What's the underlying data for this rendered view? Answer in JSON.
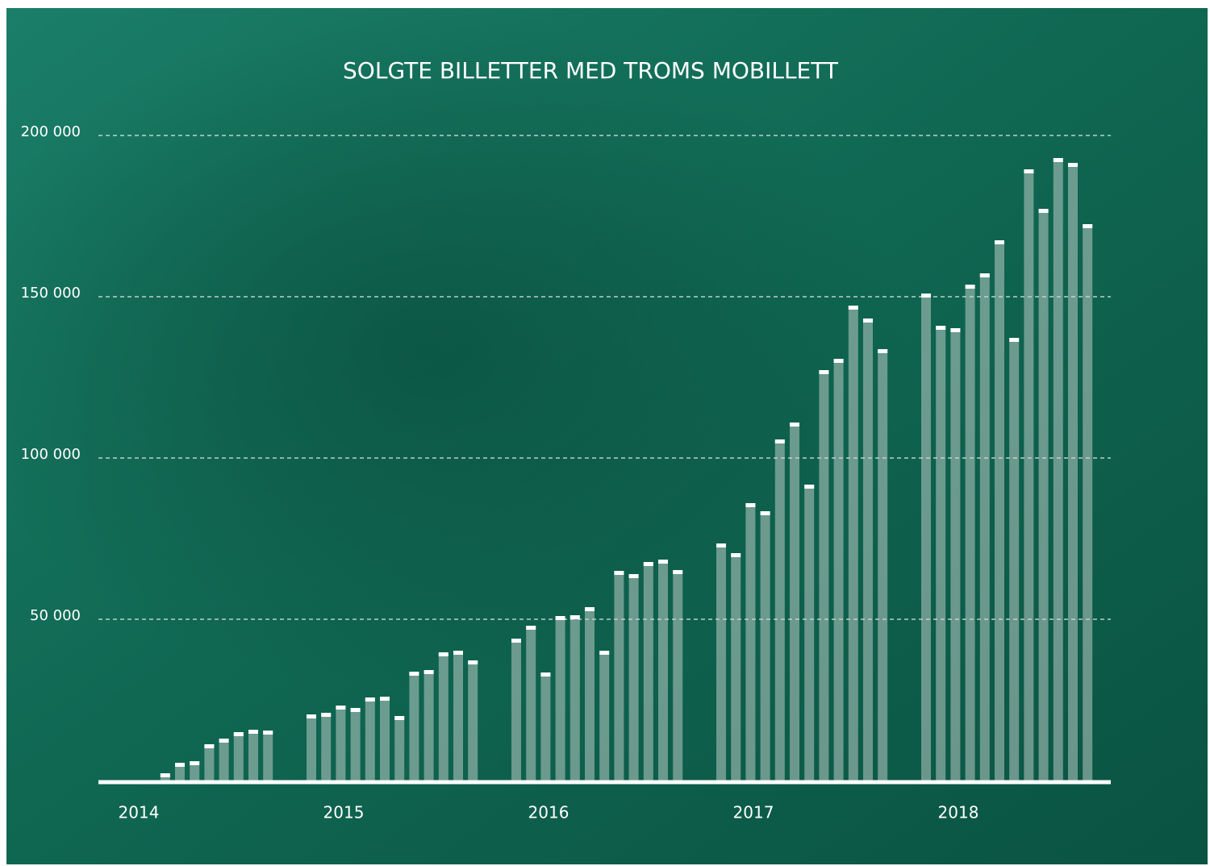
{
  "chart_data": {
    "type": "bar",
    "title": "SOLGTE BILLETTER MED TROMS MOBILLETT",
    "categories": [
      "2014",
      null,
      null,
      null,
      null,
      null,
      null,
      null,
      null,
      null,
      null,
      null,
      "2015",
      null,
      null,
      null,
      null,
      null,
      null,
      null,
      null,
      null,
      null,
      null,
      "2016",
      null,
      null,
      null,
      null,
      null,
      null,
      null,
      null,
      null,
      null,
      null,
      "2017",
      null,
      null,
      null,
      null,
      null,
      null,
      null,
      null,
      null,
      null,
      null,
      "2018",
      null,
      null,
      null,
      null,
      null,
      null,
      null,
      null,
      null,
      null,
      null
    ],
    "values": [
      null,
      null,
      null,
      null,
      2250,
      5500,
      6000,
      11250,
      13000,
      15000,
      15750,
      15500,
      20500,
      21000,
      23250,
      22500,
      25750,
      26000,
      20000,
      33750,
      34250,
      39750,
      40250,
      37250,
      44000,
      48000,
      33500,
      51000,
      51250,
      53750,
      40250,
      65000,
      64000,
      67750,
      68500,
      65250,
      73500,
      70500,
      86000,
      83500,
      105750,
      111000,
      91750,
      127250,
      130750,
      147250,
      143250,
      133750,
      151000,
      141000,
      140250,
      153750,
      157250,
      167500,
      137250,
      189500,
      177250,
      193000,
      191500,
      172500
    ],
    "color": "#c9d3cf",
    "ylim": [
      0,
      200000
    ],
    "yticks": [
      {
        "value": 50000,
        "label": "50 000"
      },
      {
        "value": 100000,
        "label": "100 000"
      },
      {
        "value": 150000,
        "label": "150 000"
      },
      {
        "value": 200000,
        "label": "200 000"
      }
    ],
    "grid": true
  }
}
